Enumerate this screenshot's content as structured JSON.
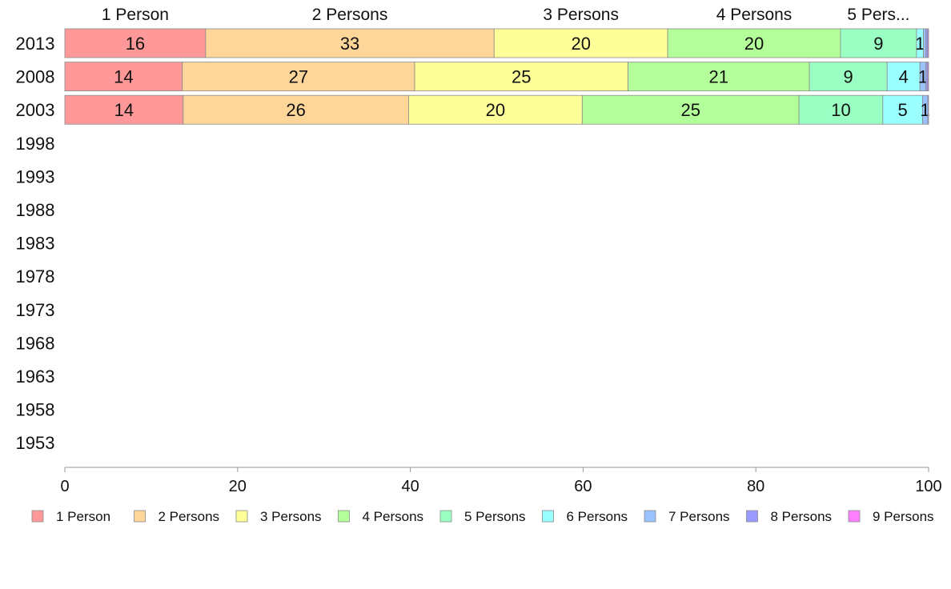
{
  "chart_data": {
    "type": "bar",
    "orientation": "horizontal",
    "stacked": true,
    "categories": [
      "2013",
      "2008",
      "2003",
      "1998",
      "1993",
      "1988",
      "1983",
      "1978",
      "1973",
      "1968",
      "1963",
      "1958",
      "1953"
    ],
    "top_labels": [
      "1 Person",
      "2 Persons",
      "3 Persons",
      "4 Persons",
      "5 Pers..."
    ],
    "series": [
      {
        "name": "1 Person",
        "color": "#ff9999",
        "values": [
          16.3,
          13.6,
          13.7,
          null,
          null,
          null,
          null,
          null,
          null,
          null,
          null,
          null,
          null
        ],
        "labels": [
          "16",
          "14",
          "14"
        ]
      },
      {
        "name": "2 Persons",
        "color": "#ffd699",
        "values": [
          33.4,
          26.9,
          26.1,
          null,
          null,
          null,
          null,
          null,
          null,
          null,
          null,
          null,
          null
        ],
        "labels": [
          "33",
          "27",
          "26"
        ]
      },
      {
        "name": "3 Persons",
        "color": "#ffff99",
        "values": [
          20.1,
          24.7,
          20.1,
          null,
          null,
          null,
          null,
          null,
          null,
          null,
          null,
          null,
          null
        ],
        "labels": [
          "20",
          "25",
          "20"
        ]
      },
      {
        "name": "4 Persons",
        "color": "#b3ff99",
        "values": [
          20.0,
          21.0,
          25.1,
          null,
          null,
          null,
          null,
          null,
          null,
          null,
          null,
          null,
          null
        ],
        "labels": [
          "20",
          "21",
          "25"
        ]
      },
      {
        "name": "5 Persons",
        "color": "#99ffc2",
        "values": [
          8.8,
          9.0,
          9.7,
          null,
          null,
          null,
          null,
          null,
          null,
          null,
          null,
          null,
          null
        ],
        "labels": [
          "9",
          "9",
          "10"
        ]
      },
      {
        "name": "6 Persons",
        "color": "#99ffff",
        "values": [
          0.8,
          3.8,
          4.6,
          null,
          null,
          null,
          null,
          null,
          null,
          null,
          null,
          null,
          null
        ],
        "labels": [
          "1",
          "4",
          "5"
        ]
      },
      {
        "name": "7 Persons",
        "color": "#99c2ff",
        "values": [
          0.3,
          0.7,
          0.6,
          null,
          null,
          null,
          null,
          null,
          null,
          null,
          null,
          null,
          null
        ],
        "labels": [
          "",
          "1",
          "1"
        ]
      },
      {
        "name": "8 Persons",
        "color": "#9999ff",
        "values": [
          0.2,
          0.2,
          0.1,
          null,
          null,
          null,
          null,
          null,
          null,
          null,
          null,
          null,
          null
        ],
        "labels": [
          "",
          "",
          ""
        ]
      },
      {
        "name": "9 Persons",
        "color": "#ff7fff",
        "values": [
          0.1,
          0.1,
          0.0,
          null,
          null,
          null,
          null,
          null,
          null,
          null,
          null,
          null,
          null
        ],
        "labels": [
          "",
          "",
          ""
        ]
      }
    ],
    "xlim": [
      0,
      100
    ],
    "x_ticks": [
      0,
      20,
      40,
      60,
      80,
      100
    ],
    "xlabel": "",
    "ylabel": "",
    "title": "",
    "grid": false,
    "legend_position": "bottom"
  }
}
